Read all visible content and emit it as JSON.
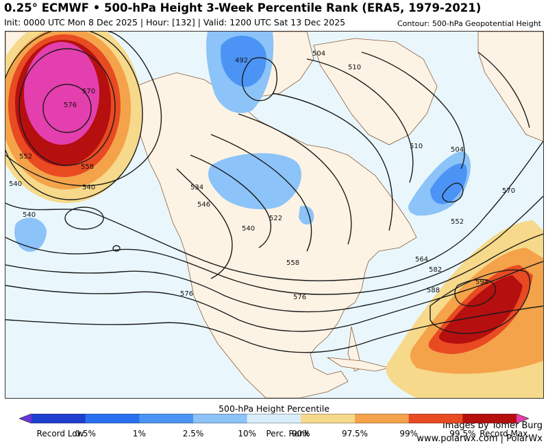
{
  "title": "0.25° ECMWF • 500-hPa Height 3-Week Percentile Rank (ERA5, 1979-2021)",
  "subtitle": "Init: 0000 UTC Mon 8 Dec 2025 | Hour: [132] | Valid: 1200 UTC Sat 13 Dec 2025",
  "contour_note": "Contour: 500-hPa Geopotential Height",
  "credits": {
    "line1": "Images by Tomer Burg",
    "line2": "www.polarwx.com | PolarWx"
  },
  "legend": {
    "title": "500-hPa Height Percentile",
    "labels": [
      "Record Low",
      "0.5%",
      "1%",
      "2.5%",
      "10%",
      "Perc. Rank",
      "90%",
      "97.5%",
      "99%",
      "99.5%",
      "Record Max"
    ],
    "colors": [
      "#6a35d9",
      "#1f3fd0",
      "#2a6ff0",
      "#4b94f5",
      "#8cc3f8",
      "#d8eefb",
      "#f6d98a",
      "#f4a34a",
      "#e84a22",
      "#b50f10",
      "#e43fae"
    ]
  },
  "contour_labels": [
    "570",
    "576",
    "552",
    "558",
    "540",
    "540",
    "540",
    "534",
    "546",
    "540",
    "522",
    "558",
    "576",
    "576",
    "492",
    "504",
    "510",
    "510",
    "504",
    "552",
    "564",
    "570",
    "582",
    "588",
    "594"
  ],
  "colors": {
    "ocean": "#e9f7fc",
    "land": "#fdf3e4",
    "contour": "#1a1a1a",
    "border": "#8a5a3a"
  }
}
